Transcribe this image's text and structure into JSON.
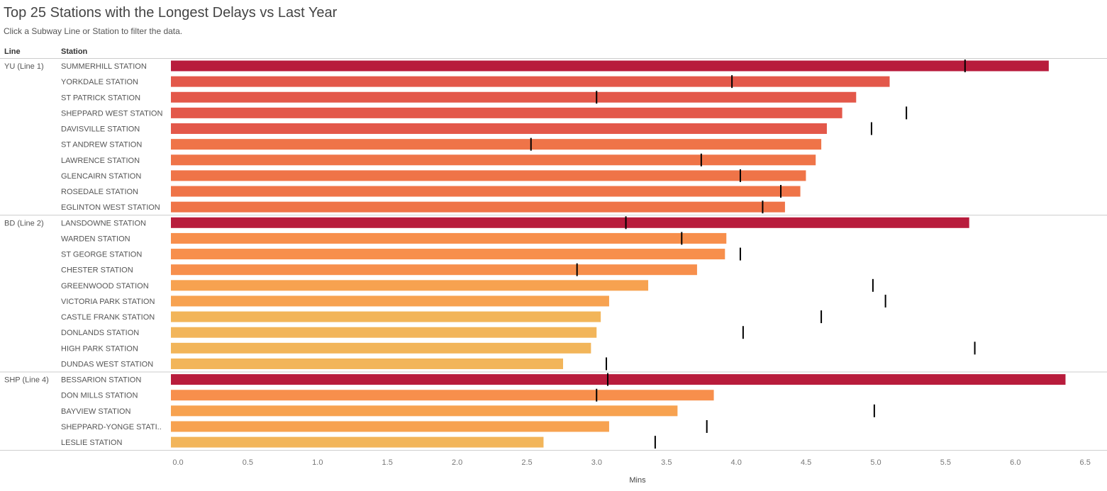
{
  "title": "Top 25 Stations with the Longest Delays vs Last Year",
  "subtitle": "Click a Subway Line or Station to filter the data.",
  "headers": {
    "line": "Line",
    "station": "Station"
  },
  "colors": {
    "max": "#b81c3c",
    "scale": [
      "#f2b55a",
      "#f7a250",
      "#f78f4c",
      "#ef7448",
      "#e3584a"
    ],
    "marker": "#000000",
    "divider": "#cccccc",
    "axis_text": "#777777"
  },
  "chart_data": {
    "type": "bar",
    "orientation": "horizontal",
    "xlabel": "Mins",
    "xlim": [
      0,
      6.5
    ],
    "ticks": [
      "0.0",
      "0.5",
      "1.0",
      "1.5",
      "2.0",
      "2.5",
      "3.0",
      "3.5",
      "4.0",
      "4.5",
      "5.0",
      "5.5",
      "6.0",
      "6.5"
    ],
    "groups": [
      {
        "line": "YU (Line 1)",
        "stations": [
          {
            "name": "SUMMERHILL STATION",
            "value": 6.29,
            "last_year": 5.69
          },
          {
            "name": "YORKDALE STATION",
            "value": 5.15,
            "last_year": 4.02
          },
          {
            "name": "ST PATRICK STATION",
            "value": 4.91,
            "last_year": 3.05
          },
          {
            "name": "SHEPPARD WEST STATION",
            "value": 4.81,
            "last_year": 5.27
          },
          {
            "name": "DAVISVILLE STATION",
            "value": 4.7,
            "last_year": 5.02
          },
          {
            "name": "ST ANDREW STATION",
            "value": 4.66,
            "last_year": 2.58
          },
          {
            "name": "LAWRENCE STATION",
            "value": 4.62,
            "last_year": 3.8
          },
          {
            "name": "GLENCAIRN STATION",
            "value": 4.55,
            "last_year": 4.08
          },
          {
            "name": "ROSEDALE STATION",
            "value": 4.51,
            "last_year": 4.37
          },
          {
            "name": "EGLINTON WEST STATION",
            "value": 4.4,
            "last_year": 4.24
          }
        ]
      },
      {
        "line": "BD (Line 2)",
        "stations": [
          {
            "name": "LANSDOWNE STATION",
            "value": 5.72,
            "last_year": 3.26
          },
          {
            "name": "WARDEN STATION",
            "value": 3.98,
            "last_year": 3.66
          },
          {
            "name": "ST GEORGE STATION",
            "value": 3.97,
            "last_year": 4.08
          },
          {
            "name": "CHESTER STATION",
            "value": 3.77,
            "last_year": 2.91
          },
          {
            "name": "GREENWOOD STATION",
            "value": 3.42,
            "last_year": 5.03
          },
          {
            "name": "VICTORIA PARK STATION",
            "value": 3.14,
            "last_year": 5.12
          },
          {
            "name": "CASTLE FRANK STATION",
            "value": 3.08,
            "last_year": 4.66
          },
          {
            "name": "DONLANDS STATION",
            "value": 3.05,
            "last_year": 4.1
          },
          {
            "name": "HIGH PARK STATION",
            "value": 3.01,
            "last_year": 5.76
          },
          {
            "name": "DUNDAS WEST STATION",
            "value": 2.81,
            "last_year": 3.12
          }
        ]
      },
      {
        "line": "SHP (Line 4)",
        "stations": [
          {
            "name": "BESSARION STATION",
            "value": 6.41,
            "last_year": 3.13
          },
          {
            "name": "DON MILLS STATION",
            "value": 3.89,
            "last_year": 3.05
          },
          {
            "name": "BAYVIEW STATION",
            "value": 3.63,
            "last_year": 5.04
          },
          {
            "name": "SHEPPARD-YONGE STATI..",
            "value": 3.14,
            "last_year": 3.84
          },
          {
            "name": "LESLIE STATION",
            "value": 2.67,
            "last_year": 3.47
          }
        ]
      }
    ]
  }
}
